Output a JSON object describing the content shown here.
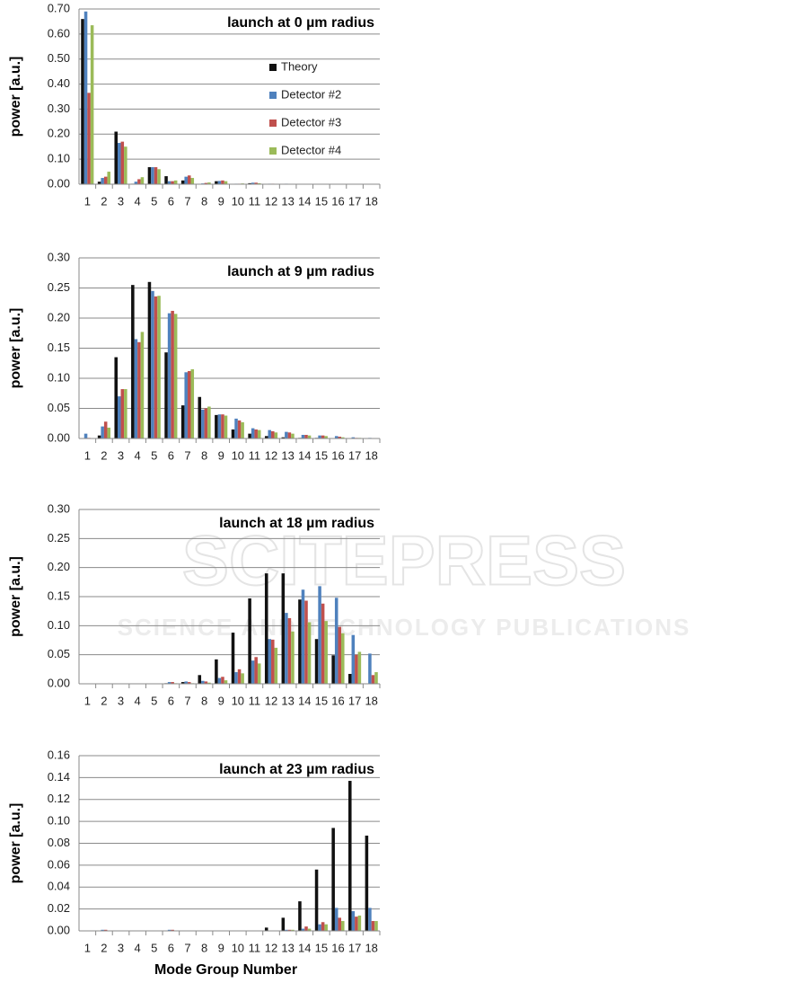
{
  "watermark": {
    "title": "SCITEPRESS",
    "subtitle": "SCIENCE AND TECHNOLOGY PUBLICATIONS"
  },
  "chart_data": [
    {
      "type": "bar",
      "title": "launch at 0 µm radius",
      "y_label": "power [a.u.]",
      "grid": true,
      "legend": "upper right",
      "categories": [
        "1",
        "2",
        "3",
        "4",
        "5",
        "6",
        "7",
        "8",
        "9",
        "10",
        "11",
        "12",
        "13",
        "14",
        "15",
        "16",
        "17",
        "18"
      ],
      "ylim": [
        0,
        0.7
      ],
      "yticks": [
        {
          "value": 0,
          "label": "0.00"
        },
        {
          "value": 0.1,
          "label": "0.10"
        },
        {
          "value": 0.2,
          "label": "0.20"
        },
        {
          "value": 0.3,
          "label": "0.30"
        },
        {
          "value": 0.4,
          "label": "0.40"
        },
        {
          "value": 0.5,
          "label": "0.50"
        },
        {
          "value": 0.6,
          "label": "0.60"
        },
        {
          "value": 0.7,
          "label": "0.70"
        }
      ],
      "series": [
        {
          "name": "Theory",
          "color": "#111111",
          "values": [
            0.66,
            0.01,
            0.21,
            0.002,
            0.068,
            0.032,
            0.015,
            0.001,
            0.012,
            0.001,
            0.004,
            0.001,
            0,
            0,
            0,
            0,
            0,
            0
          ]
        },
        {
          "name": "Detector #2",
          "color": "#4f81bd",
          "values": [
            0.69,
            0.025,
            0.165,
            0.01,
            0.068,
            0.012,
            0.03,
            0.003,
            0.013,
            0.002,
            0.006,
            0.002,
            0.002,
            0.001,
            0.001,
            0,
            0,
            0
          ]
        },
        {
          "name": "Detector #3",
          "color": "#c0504d",
          "values": [
            0.365,
            0.03,
            0.17,
            0.02,
            0.068,
            0.012,
            0.035,
            0.005,
            0.015,
            0.002,
            0.006,
            0.002,
            0.001,
            0.001,
            0.001,
            0,
            0,
            0
          ]
        },
        {
          "name": "Detector #4",
          "color": "#9bbb59",
          "values": [
            0.635,
            0.05,
            0.15,
            0.028,
            0.06,
            0.015,
            0.025,
            0.007,
            0.012,
            0.003,
            0.004,
            0.001,
            0.001,
            0.001,
            0.001,
            0,
            0,
            0
          ]
        }
      ]
    },
    {
      "type": "bar",
      "title": "launch at 9 µm radius",
      "y_label": "power [a.u.]",
      "grid": true,
      "categories": [
        "1",
        "2",
        "3",
        "4",
        "5",
        "6",
        "7",
        "8",
        "9",
        "10",
        "11",
        "12",
        "13",
        "14",
        "15",
        "16",
        "17",
        "18"
      ],
      "ylim": [
        0,
        0.3
      ],
      "yticks": [
        {
          "value": 0,
          "label": "0.00"
        },
        0.05,
        {
          "value": 0.1,
          "label": "0.10"
        },
        0.15,
        {
          "value": 0.2,
          "label": "0.20"
        },
        0.25,
        {
          "value": 0.3,
          "label": "0.30"
        }
      ],
      "series": [
        {
          "color": "#111111",
          "values": [
            0,
            0.005,
            0.135,
            0.255,
            0.26,
            0.143,
            0.055,
            0.069,
            0.039,
            0.015,
            0.008,
            0.004,
            0.002,
            0.001,
            0.001,
            0,
            0,
            0
          ]
        },
        {
          "color": "#4f81bd",
          "values": [
            0.008,
            0.02,
            0.07,
            0.165,
            0.245,
            0.208,
            0.11,
            0.048,
            0.04,
            0.033,
            0.017,
            0.014,
            0.011,
            0.006,
            0.005,
            0.004,
            0.002,
            0.001
          ]
        },
        {
          "color": "#c0504d",
          "values": [
            0.001,
            0.028,
            0.082,
            0.16,
            0.236,
            0.212,
            0.112,
            0.05,
            0.04,
            0.03,
            0.015,
            0.012,
            0.01,
            0.006,
            0.005,
            0.003,
            0.001,
            0
          ]
        },
        {
          "color": "#9bbb59",
          "values": [
            0,
            0.018,
            0.082,
            0.177,
            0.237,
            0.207,
            0.115,
            0.053,
            0.038,
            0.027,
            0.014,
            0.01,
            0.008,
            0.005,
            0.004,
            0.002,
            0.001,
            0
          ]
        }
      ]
    },
    {
      "type": "bar",
      "title": "launch at 18 µm radius",
      "y_label": "power [a.u.]",
      "grid": true,
      "categories": [
        "1",
        "2",
        "3",
        "4",
        "5",
        "6",
        "7",
        "8",
        "9",
        "10",
        "11",
        "12",
        "13",
        "14",
        "15",
        "16",
        "17",
        "18"
      ],
      "ylim": [
        0,
        0.3
      ],
      "yticks": [
        {
          "value": 0,
          "label": "0.00"
        },
        0.05,
        {
          "value": 0.1,
          "label": "0.10"
        },
        0.15,
        {
          "value": 0.2,
          "label": "0.20"
        },
        0.25,
        {
          "value": 0.3,
          "label": "0.30"
        }
      ],
      "series": [
        {
          "color": "#111111",
          "values": [
            0,
            0,
            0,
            0,
            0,
            0.001,
            0.003,
            0.015,
            0.042,
            0.088,
            0.147,
            0.19,
            0.19,
            0.145,
            0.077,
            0.049,
            0.017,
            0
          ]
        },
        {
          "color": "#4f81bd",
          "values": [
            0,
            0,
            0,
            0,
            0,
            0.003,
            0.004,
            0.005,
            0.01,
            0.02,
            0.04,
            0.077,
            0.122,
            0.162,
            0.168,
            0.148,
            0.084,
            0.052
          ]
        },
        {
          "color": "#c0504d",
          "values": [
            0,
            0,
            0,
            0,
            0,
            0.003,
            0.003,
            0.004,
            0.012,
            0.025,
            0.046,
            0.076,
            0.113,
            0.143,
            0.138,
            0.098,
            0.05,
            0.015
          ]
        },
        {
          "color": "#9bbb59",
          "values": [
            0,
            0,
            0,
            0,
            0,
            0.001,
            0.001,
            0.002,
            0.006,
            0.018,
            0.035,
            0.062,
            0.09,
            0.106,
            0.108,
            0.087,
            0.055,
            0.02
          ]
        }
      ]
    },
    {
      "type": "bar",
      "title": "launch at 23 µm radius",
      "y_label": "power [a.u.]",
      "x_label": "Mode Group Number",
      "grid": true,
      "categories": [
        "1",
        "2",
        "3",
        "4",
        "5",
        "6",
        "7",
        "8",
        "9",
        "10",
        "11",
        "12",
        "13",
        "14",
        "15",
        "16",
        "17",
        "18"
      ],
      "ylim": [
        0,
        0.16
      ],
      "yticks": [
        {
          "value": 0,
          "label": "0.00"
        },
        0.02,
        0.04,
        0.06,
        0.08,
        {
          "value": 0.1,
          "label": "0.10"
        },
        0.12,
        0.14,
        0.16
      ],
      "series": [
        {
          "color": "#111111",
          "values": [
            0,
            0,
            0,
            0,
            0,
            0,
            0,
            0,
            0,
            0,
            0,
            0.003,
            0.012,
            0.027,
            0.056,
            0.094,
            0.137,
            0.087
          ]
        },
        {
          "color": "#4f81bd",
          "values": [
            0,
            0.001,
            0,
            0,
            0,
            0.001,
            0,
            0,
            0,
            0,
            0,
            0,
            0.001,
            0.002,
            0.006,
            0.021,
            0.018,
            0.021
          ]
        },
        {
          "color": "#c0504d",
          "values": [
            0,
            0.001,
            0,
            0,
            0,
            0.001,
            0,
            0,
            0,
            0,
            0,
            0,
            0.001,
            0.004,
            0.008,
            0.012,
            0.013,
            0.009
          ]
        },
        {
          "color": "#9bbb59",
          "values": [
            0,
            0,
            0,
            0,
            0,
            0,
            0,
            0,
            0,
            0,
            0,
            0,
            0.001,
            0.002,
            0.006,
            0.009,
            0.014,
            0.009
          ]
        }
      ]
    }
  ]
}
